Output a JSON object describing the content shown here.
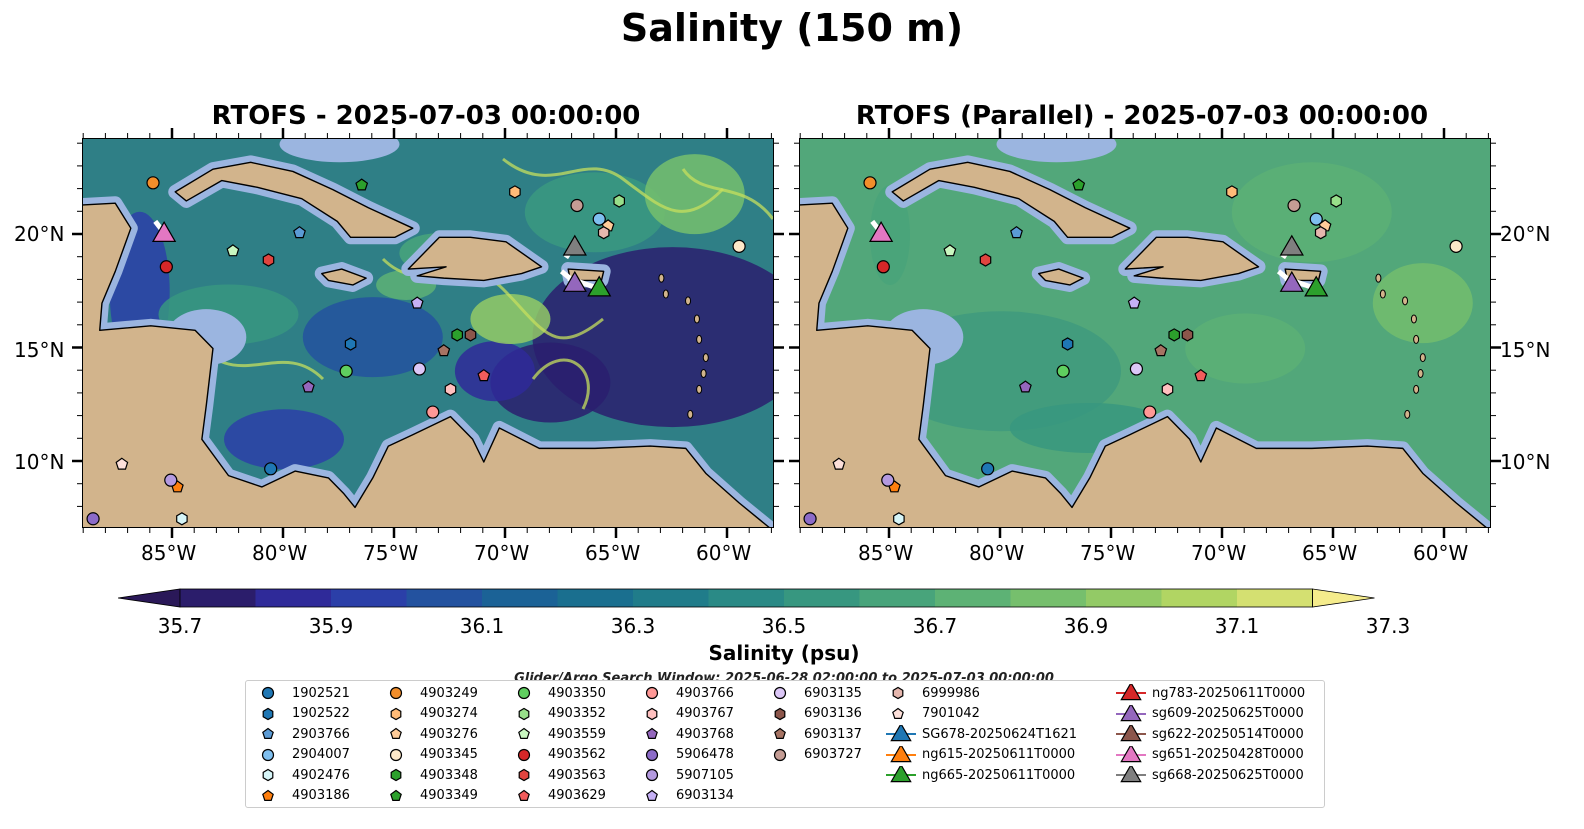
{
  "figure": {
    "title": "Salinity (150 m)",
    "search_window": "Glider/Argo Search Window: 2025-06-28 02:00:00 to 2025-07-03 00:00:00"
  },
  "panels": [
    {
      "title": "RTOFS - 2025-07-03 00:00:00",
      "variant": "rtofs"
    },
    {
      "title": "RTOFS (Parallel) - 2025-07-03 00:00:00",
      "variant": "parallel"
    }
  ],
  "axes": {
    "lon_ticks": [
      "85°W",
      "80°W",
      "75°W",
      "70°W",
      "65°W",
      "60°W"
    ],
    "lat_ticks": [
      "20°N",
      "15°N",
      "10°N"
    ]
  },
  "colorbar": {
    "label": "Salinity (psu)",
    "ticks": [
      "35.7",
      "35.9",
      "36.1",
      "36.3",
      "36.5",
      "36.7",
      "36.9",
      "37.1",
      "37.3"
    ],
    "colors": [
      "#2b1d6b",
      "#2f2a99",
      "#2b3fa8",
      "#23529f",
      "#1b6296",
      "#1a6f8f",
      "#207c8a",
      "#2a8a86",
      "#379780",
      "#48a47b",
      "#5db275",
      "#76bf6d",
      "#93ca66",
      "#b1d563",
      "#d4e071"
    ],
    "under_color": "#2a1858",
    "over_color": "#f5ec8c"
  },
  "colors": {
    "land": "#d2b48c",
    "shelf": "#9bb5e0",
    "deep": "#2a1f6e",
    "green": "#3f9a7e",
    "yellow": "#c6df5e"
  },
  "chart_data": {
    "type": "scatter",
    "title": "Salinity (150 m)",
    "colorbar_label": "Salinity (psu)",
    "colorbar_range": [
      35.7,
      37.3
    ],
    "xlim": [
      -89,
      -58
    ],
    "ylim": [
      7,
      24.2
    ],
    "argo_floats": [
      {
        "id": "1902521",
        "marker": "circle",
        "color": "#1f77b4",
        "lon": -80.6,
        "lat": 9.7
      },
      {
        "id": "1902522",
        "marker": "hexagon",
        "color": "#1f77b4",
        "lon": -77.0,
        "lat": 15.2
      },
      {
        "id": "2903766",
        "marker": "pentagon",
        "color": "#5b9bd5",
        "lon": -79.3,
        "lat": 20.1
      },
      {
        "id": "2904007",
        "marker": "circle",
        "color": "#7fbfef",
        "lon": -65.8,
        "lat": 20.7
      },
      {
        "id": "4902476",
        "marker": "hexagon",
        "color": "#d6f5f8",
        "lon": -84.6,
        "lat": 7.5
      },
      {
        "id": "4903186",
        "marker": "pentagon",
        "color": "#ff7f0e",
        "lon": -84.8,
        "lat": 8.9
      },
      {
        "id": "4903249",
        "marker": "circle",
        "color": "#f28e2b",
        "lon": -85.9,
        "lat": 22.3
      },
      {
        "id": "4903274",
        "marker": "hexagon",
        "color": "#ffbb78",
        "lon": -69.6,
        "lat": 21.9
      },
      {
        "id": "4903276",
        "marker": "pentagon",
        "color": "#ffcc99",
        "lon": -65.4,
        "lat": 20.4
      },
      {
        "id": "4903345",
        "marker": "circle",
        "color": "#fde8c8",
        "lon": -59.5,
        "lat": 19.5
      },
      {
        "id": "4903348",
        "marker": "hexagon",
        "color": "#2ca02c",
        "lon": -72.2,
        "lat": 15.6
      },
      {
        "id": "4903349",
        "marker": "pentagon",
        "color": "#2ca02c",
        "lon": -76.5,
        "lat": 22.2
      },
      {
        "id": "4903350",
        "marker": "circle",
        "color": "#5fcf5f",
        "lon": -77.2,
        "lat": 14.0
      },
      {
        "id": "4903352",
        "marker": "hexagon",
        "color": "#98df8a",
        "lon": -64.9,
        "lat": 21.5
      },
      {
        "id": "4903559",
        "marker": "pentagon",
        "color": "#c9f7c0",
        "lon": -82.3,
        "lat": 19.3
      },
      {
        "id": "4903562",
        "marker": "circle",
        "color": "#d62728",
        "lon": -85.3,
        "lat": 18.6
      },
      {
        "id": "4903563",
        "marker": "hexagon",
        "color": "#e0443f",
        "lon": -80.7,
        "lat": 18.9
      },
      {
        "id": "4903629",
        "marker": "pentagon",
        "color": "#f25c5c",
        "lon": -71.0,
        "lat": 13.8
      },
      {
        "id": "4903766",
        "marker": "circle",
        "color": "#ff9896",
        "lon": -73.3,
        "lat": 12.2
      },
      {
        "id": "4903767",
        "marker": "hexagon",
        "color": "#ffc0bf",
        "lon": -72.5,
        "lat": 13.2
      },
      {
        "id": "4903768",
        "marker": "pentagon",
        "color": "#9467bd",
        "lon": -78.9,
        "lat": 13.3
      },
      {
        "id": "5906478",
        "marker": "circle",
        "color": "#8c6bc8",
        "lon": -88.6,
        "lat": 7.5
      },
      {
        "id": "5907105",
        "marker": "circle",
        "color": "#b49ae0",
        "lon": -85.1,
        "lat": 9.2
      },
      {
        "id": "6903134",
        "marker": "pentagon",
        "color": "#c5b0f5",
        "lon": -74.0,
        "lat": 17.0
      },
      {
        "id": "6903135",
        "marker": "circle",
        "color": "#dcc7f7",
        "lon": -73.9,
        "lat": 14.1
      },
      {
        "id": "6903136",
        "marker": "hexagon",
        "color": "#8c564b",
        "lon": -71.6,
        "lat": 15.6
      },
      {
        "id": "6903137",
        "marker": "pentagon",
        "color": "#a67363",
        "lon": -72.8,
        "lat": 14.9
      },
      {
        "id": "6903727",
        "marker": "circle",
        "color": "#c49c94",
        "lon": -66.8,
        "lat": 21.3
      },
      {
        "id": "6999986",
        "marker": "hexagon",
        "color": "#e6b7ae",
        "lon": -65.6,
        "lat": 20.1
      },
      {
        "id": "7901042",
        "marker": "pentagon",
        "color": "#fde0da",
        "lon": -87.3,
        "lat": 9.9
      }
    ],
    "gliders": [
      {
        "id": "SG678-20250624T1621",
        "color": "#1f77b4",
        "track": [],
        "last": null
      },
      {
        "id": "ng615-20250611T0000",
        "color": "#ff7f0e",
        "track": [],
        "last": null
      },
      {
        "id": "ng665-20250611T0000",
        "color": "#2ca02c",
        "track": [
          [
            -67.2,
            18.1
          ],
          [
            -66.6,
            17.9
          ],
          [
            -66.0,
            17.7
          ]
        ],
        "last": [
          -65.8,
          17.6
        ]
      },
      {
        "id": "ng783-20250611T0000",
        "color": "#d62728",
        "track": [],
        "last": null
      },
      {
        "id": "sg609-20250625T0000",
        "color": "#9467bd",
        "track": [
          [
            -67.5,
            18.4
          ],
          [
            -67.0,
            18.0
          ]
        ],
        "last": [
          -66.9,
          17.8
        ]
      },
      {
        "id": "sg622-20250514T0000",
        "color": "#8c564b",
        "track": [],
        "last": null
      },
      {
        "id": "sg651-20250428T0000",
        "color": "#e377c2",
        "track": [
          [
            -85.8,
            20.6
          ],
          [
            -85.4,
            20.1
          ]
        ],
        "last": [
          -85.4,
          20.0
        ]
      },
      {
        "id": "sg668-20250625T0000",
        "color": "#7f7f7f",
        "track": [
          [
            -67.3,
            19.0
          ],
          [
            -67.1,
            19.3
          ]
        ],
        "last": [
          -66.9,
          19.4
        ]
      }
    ]
  }
}
